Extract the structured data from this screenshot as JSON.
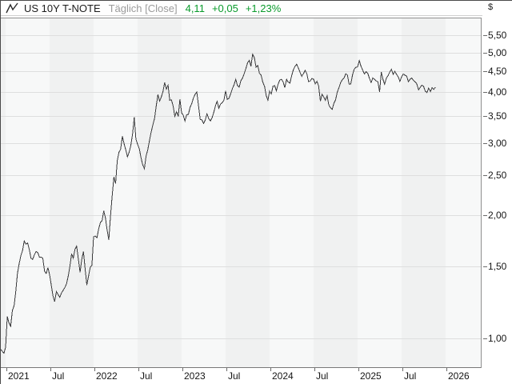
{
  "header": {
    "title": "US 10Y T-NOTE",
    "period": "Täglich [Close]",
    "price": "4,11",
    "change_abs": "+0,05",
    "change_pct": "+1,23%"
  },
  "colors": {
    "up_green": "#0a9b2c",
    "series_line": "#3a3a3c",
    "band_light": "#f7f8f8",
    "band_dark": "#f0f1f1",
    "gridline": "#dedede",
    "axis_text": "#151515"
  },
  "y_axis": {
    "unit": "$",
    "ticks": [
      {
        "label": "5,50",
        "value": 5.5
      },
      {
        "label": "5,00",
        "value": 5.0
      },
      {
        "label": "4,50",
        "value": 4.5
      },
      {
        "label": "4,00",
        "value": 4.0
      },
      {
        "label": "3,50",
        "value": 3.5
      },
      {
        "label": "3,00",
        "value": 3.0
      },
      {
        "label": "2,50",
        "value": 2.5
      },
      {
        "label": "2,00",
        "value": 2.0
      },
      {
        "label": "1,50",
        "value": 1.5
      },
      {
        "label": "1,00",
        "value": 1.0
      }
    ]
  },
  "x_axis": {
    "ticks": [
      {
        "label": "2021",
        "yf": 2021.0
      },
      {
        "label": "Jul",
        "yf": 2021.5
      },
      {
        "label": "2022",
        "yf": 2022.0
      },
      {
        "label": "Jul",
        "yf": 2022.5
      },
      {
        "label": "2023",
        "yf": 2023.0
      },
      {
        "label": "Jul",
        "yf": 2023.5
      },
      {
        "label": "2024",
        "yf": 2024.0
      },
      {
        "label": "Jul",
        "yf": 2024.5
      },
      {
        "label": "2025",
        "yf": 2025.0
      },
      {
        "label": "Jul",
        "yf": 2025.5
      },
      {
        "label": "2026",
        "yf": 2026.0
      }
    ]
  },
  "chart_data": {
    "type": "line",
    "title": "US 10Y T-NOTE",
    "series_name": "US 10Y T-NOTE Täglich [Close]",
    "y_scale": "log",
    "ylim": [
      0.85,
      5.75
    ],
    "x_range_year_frac": [
      2020.92,
      2026.42
    ],
    "grid": true,
    "legend": "none",
    "last_point": {
      "price": 4.11,
      "change_abs": 0.05,
      "change_pct": 1.23
    },
    "bands": {
      "start_yf": 2020.5,
      "interval_yf": 0.5,
      "count": 12,
      "dark_half": "jul-dec"
    },
    "x_start_year_frac": 2020.9231,
    "points_per_year": 52,
    "values": [
      0.97,
      0.94,
      0.93,
      0.92,
      0.95,
      1.13,
      1.09,
      1.07,
      1.17,
      1.2,
      1.3,
      1.44,
      1.52,
      1.59,
      1.64,
      1.73,
      1.7,
      1.71,
      1.65,
      1.57,
      1.56,
      1.6,
      1.63,
      1.62,
      1.58,
      1.58,
      1.57,
      1.46,
      1.44,
      1.49,
      1.43,
      1.35,
      1.27,
      1.23,
      1.3,
      1.28,
      1.26,
      1.29,
      1.31,
      1.33,
      1.36,
      1.42,
      1.5,
      1.61,
      1.57,
      1.65,
      1.68,
      1.56,
      1.45,
      1.56,
      1.63,
      1.48,
      1.35,
      1.42,
      1.49,
      1.51,
      1.77,
      1.78,
      1.76,
      1.85,
      1.92,
      1.94,
      2.05,
      1.97,
      1.84,
      1.74,
      2.0,
      2.24,
      2.48,
      2.39,
      2.72,
      2.85,
      2.9,
      3.12,
      2.99,
      2.89,
      2.78,
      2.85,
      2.96,
      3.16,
      3.47,
      3.07,
      2.98,
      2.91,
      2.77,
      2.66,
      2.6,
      2.79,
      2.89,
      3.04,
      3.19,
      3.32,
      3.45,
      3.7,
      3.95,
      3.8,
      3.89,
      4.01,
      4.22,
      4.07,
      4.16,
      3.82,
      3.83,
      3.7,
      3.49,
      3.58,
      3.49,
      3.84,
      3.56,
      3.51,
      3.4,
      3.52,
      3.53,
      3.67,
      3.75,
      3.87,
      3.95,
      4.0,
      3.7,
      3.43,
      3.42,
      3.35,
      3.42,
      3.54,
      3.45,
      3.4,
      3.46,
      3.57,
      3.7,
      3.8,
      3.65,
      3.74,
      3.77,
      3.82,
      4.03,
      3.84,
      3.86,
      3.96,
      4.08,
      4.17,
      4.3,
      4.15,
      4.11,
      4.26,
      4.33,
      4.44,
      4.57,
      4.72,
      4.78,
      4.63,
      4.95,
      4.85,
      4.6,
      4.65,
      4.45,
      4.4,
      4.23,
      4.13,
      3.92,
      3.82,
      4.02,
      3.96,
      4.13,
      4.15,
      4.03,
      4.18,
      4.28,
      4.3,
      4.24,
      4.1,
      4.3,
      4.23,
      4.21,
      4.38,
      4.53,
      4.62,
      4.68,
      4.58,
      4.47,
      4.37,
      4.44,
      4.52,
      4.44,
      4.24,
      4.26,
      4.32,
      4.3,
      4.19,
      4.25,
      4.14,
      3.8,
      3.95,
      3.89,
      3.82,
      3.92,
      3.72,
      3.66,
      3.63,
      3.76,
      3.83,
      4.0,
      4.1,
      4.22,
      4.29,
      4.33,
      4.44,
      4.4,
      4.18,
      4.19,
      4.41,
      4.55,
      4.6,
      4.61,
      4.78,
      4.63,
      4.53,
      4.43,
      4.49,
      4.45,
      4.32,
      4.22,
      4.33,
      4.3,
      4.26,
      4.24,
      4.0,
      4.48,
      4.3,
      4.18,
      4.33,
      4.39,
      4.48,
      4.55,
      4.42,
      4.5,
      4.42,
      4.36,
      4.25,
      4.36,
      4.43,
      4.4,
      4.38,
      4.24,
      4.3,
      4.33,
      4.27,
      4.24,
      4.19,
      4.05,
      4.11,
      4.16,
      4.13,
      4.02,
      3.99,
      4.09,
      4.01,
      4.1,
      4.06,
      4.11
    ]
  }
}
